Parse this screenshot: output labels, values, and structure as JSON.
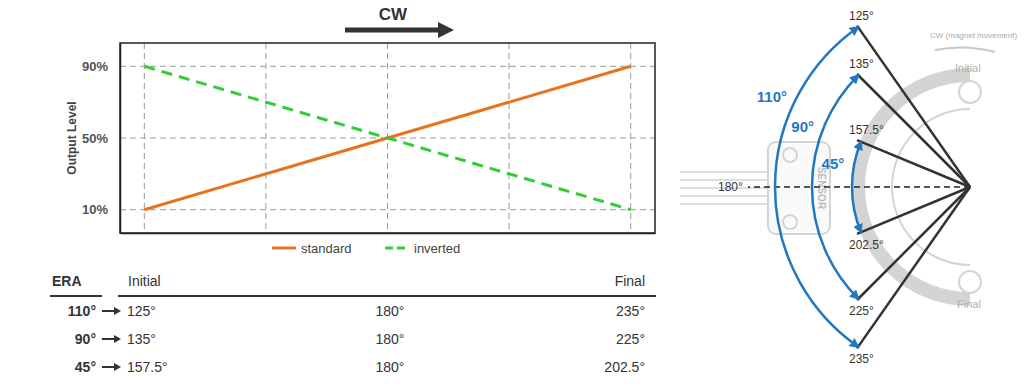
{
  "chart_data": {
    "type": "line",
    "title": "CW",
    "ylabel": "Output Level",
    "x": [
      0,
      100
    ],
    "xlim": [
      -5,
      105
    ],
    "xticks": [
      0,
      25,
      50,
      75,
      100
    ],
    "ylim": [
      -3,
      103
    ],
    "yticks": [
      {
        "value": 10,
        "label": "10%"
      },
      {
        "value": 50,
        "label": "50%"
      },
      {
        "value": 90,
        "label": "90%"
      }
    ],
    "grid": true,
    "tick_labels": "y",
    "legend": "bottom",
    "series": [
      {
        "name": "standard",
        "color": "#e8731f",
        "line_style": "solid",
        "values": [
          10,
          90
        ]
      },
      {
        "name": "inverted",
        "color": "#33cc33",
        "line_style": "dashed",
        "values": [
          90,
          10
        ]
      }
    ]
  },
  "table": {
    "header": {
      "era": "ERA",
      "initial": "Initial",
      "final": "Final"
    },
    "rows": [
      [
        "110°",
        "125°",
        "180°",
        "235°"
      ],
      [
        "90°",
        "135°",
        "180°",
        "225°"
      ],
      [
        "45°",
        "157.5°",
        "180°",
        "202.5°"
      ]
    ]
  },
  "diagram": {
    "reference": {
      "value": 180,
      "label": "180°"
    },
    "arcs": [
      {
        "span": {
          "value": 110,
          "label": "110°"
        },
        "start": {
          "value": 125,
          "label": "125°"
        },
        "end": {
          "value": 235,
          "label": "235°"
        }
      },
      {
        "span": {
          "value": 90,
          "label": "90°"
        },
        "start": {
          "value": 135,
          "label": "135°"
        },
        "end": {
          "value": 225,
          "label": "225°"
        }
      },
      {
        "span": {
          "value": 45,
          "label": "45°"
        },
        "start": {
          "value": 157.5,
          "label": "157.5°"
        },
        "end": {
          "value": 202.5,
          "label": "202.5°"
        }
      }
    ],
    "sensor_label": "SENSOR",
    "initial_label": "Initial",
    "final_label": "Final",
    "direction_label": "CW (magnet movement)"
  }
}
